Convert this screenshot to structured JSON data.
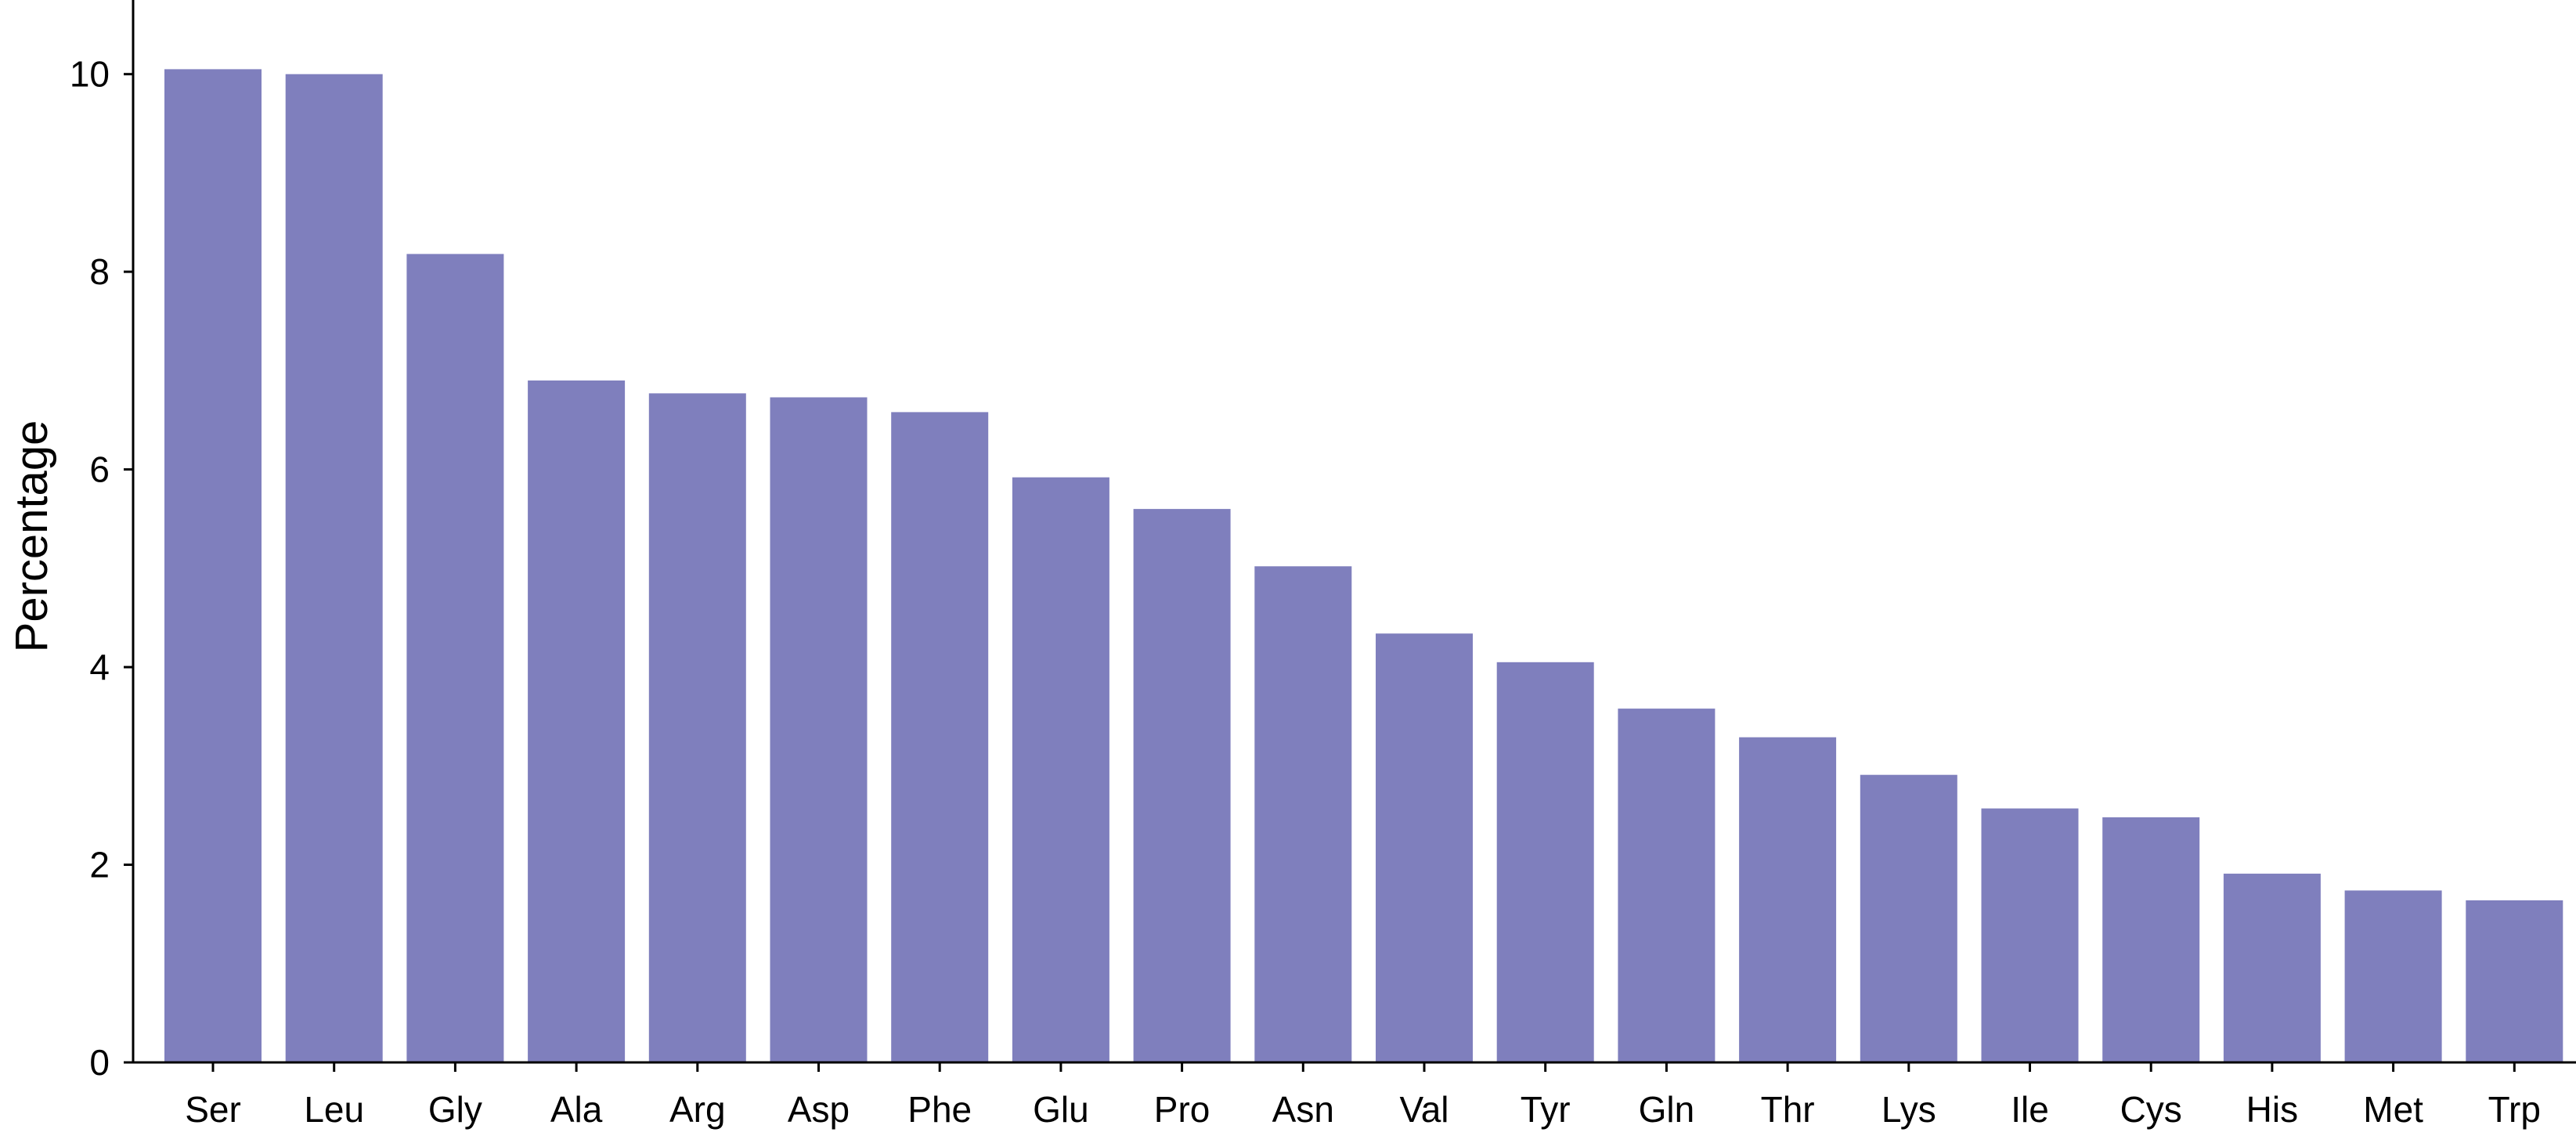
{
  "chart_data": {
    "type": "bar",
    "title": "",
    "xlabel": "",
    "ylabel": "Percentage",
    "categories": [
      "Ser",
      "Leu",
      "Gly",
      "Ala",
      "Arg",
      "Asp",
      "Phe",
      "Glu",
      "Pro",
      "Asn",
      "Val",
      "Tyr",
      "Gln",
      "Thr",
      "Lys",
      "Ile",
      "Cys",
      "His",
      "Met",
      "Trp"
    ],
    "values": [
      10.05,
      10.0,
      8.18,
      6.9,
      6.77,
      6.73,
      6.58,
      5.92,
      5.6,
      5.02,
      4.34,
      4.05,
      3.58,
      3.29,
      2.91,
      2.57,
      2.48,
      1.91,
      1.74,
      1.64
    ],
    "yticks": [
      0,
      2,
      4,
      6,
      8,
      10
    ],
    "ylim": [
      0,
      10.75
    ],
    "bar_color": "#7f7fbd",
    "grid": false,
    "legend": false
  }
}
